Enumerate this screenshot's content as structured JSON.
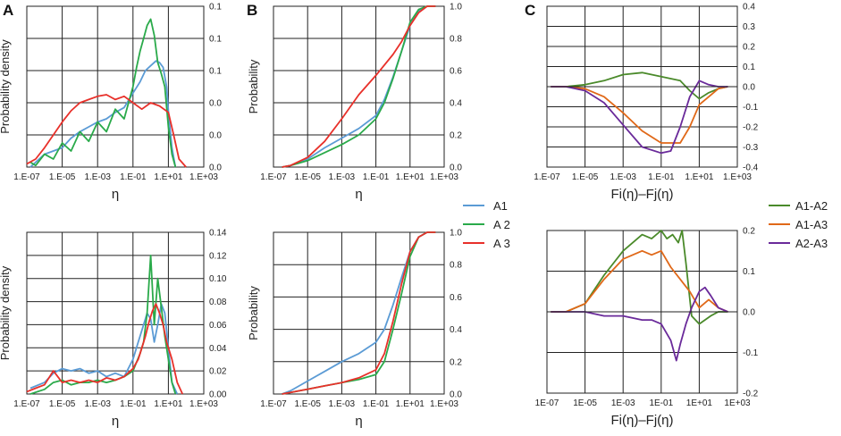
{
  "figure": {
    "panel_labels": [
      "A",
      "B",
      "C"
    ],
    "legend_left": [
      {
        "name": "A1",
        "color": "#5b9bd5"
      },
      {
        "name": "A 2",
        "color": "#2aaa4a"
      },
      {
        "name": "A 3",
        "color": "#e8302a"
      }
    ],
    "legend_right": [
      {
        "name": "A1-A2",
        "color": "#4a8a2a"
      },
      {
        "name": "A1-A3",
        "color": "#e06818"
      },
      {
        "name": "A2-A3",
        "color": "#6a2a9a"
      }
    ]
  },
  "chart_data": [
    {
      "id": "A-top",
      "type": "line",
      "panel": "A",
      "ylabel": "Probability density",
      "xlabel": "η",
      "x_ticks": [
        "1.E-07",
        "1.E-05",
        "1.E-03",
        "1.E-01",
        "1.E+01",
        "1.E+03"
      ],
      "y_ticks": [
        "0.0",
        "0.0",
        "0.0",
        "0.1",
        "0.1",
        "0.1"
      ],
      "xlim_log10": [
        -7,
        3
      ],
      "ylim": [
        0,
        0.1
      ],
      "series": [
        {
          "name": "A1",
          "color": "#5b9bd5",
          "x": [
            -6.8,
            -6,
            -5,
            -4.5,
            -4,
            -3.5,
            -3,
            -2.5,
            -2,
            -1.5,
            -1,
            -0.6,
            -0.3,
            0,
            0.3,
            0.5,
            0.7,
            0.9,
            1,
            1.2,
            1.4
          ],
          "y": [
            0,
            0.008,
            0.012,
            0.018,
            0.022,
            0.025,
            0.028,
            0.03,
            0.034,
            0.037,
            0.046,
            0.053,
            0.06,
            0.063,
            0.066,
            0.065,
            0.062,
            0.05,
            0.035,
            0.012,
            0
          ]
        },
        {
          "name": "A 2",
          "color": "#2aaa4a",
          "x": [
            -6.8,
            -6.5,
            -6,
            -5.5,
            -5,
            -4.5,
            -4,
            -3.5,
            -3,
            -2.5,
            -2,
            -1.5,
            -1,
            -0.8,
            -0.6,
            -0.4,
            -0.2,
            0,
            0.2,
            0.4,
            0.6,
            0.8,
            1,
            1.2,
            1.4
          ],
          "y": [
            0.003,
            0.001,
            0.008,
            0.005,
            0.015,
            0.01,
            0.022,
            0.016,
            0.028,
            0.022,
            0.036,
            0.03,
            0.05,
            0.062,
            0.072,
            0.08,
            0.088,
            0.092,
            0.082,
            0.065,
            0.058,
            0.05,
            0.025,
            0.008,
            0
          ]
        },
        {
          "name": "A 3",
          "color": "#e8302a",
          "x": [
            -7,
            -6.5,
            -6,
            -5.5,
            -5,
            -4.5,
            -4,
            -3.5,
            -3,
            -2.5,
            -2,
            -1.5,
            -1,
            -0.5,
            0,
            0.5,
            1,
            1.3,
            1.6,
            2
          ],
          "y": [
            0.002,
            0.005,
            0.012,
            0.02,
            0.028,
            0.035,
            0.04,
            0.042,
            0.044,
            0.045,
            0.042,
            0.044,
            0.04,
            0.036,
            0.04,
            0.038,
            0.034,
            0.02,
            0.005,
            0
          ]
        }
      ]
    },
    {
      "id": "A-bottom",
      "type": "line",
      "panel": "A",
      "ylabel": "Probability density",
      "xlabel": "η",
      "x_ticks": [
        "1.E-07",
        "1.E-05",
        "1.E-03",
        "1.E-01",
        "1.E+01",
        "1.E+03"
      ],
      "y_ticks": [
        "0.00",
        "0.02",
        "0.04",
        "0.06",
        "0.08",
        "0.10",
        "0.12",
        "0.14"
      ],
      "xlim_log10": [
        -7,
        3
      ],
      "ylim": [
        0,
        0.14
      ],
      "series": [
        {
          "name": "A1",
          "color": "#5b9bd5",
          "x": [
            -6.8,
            -6,
            -5.5,
            -5,
            -4.5,
            -4,
            -3.5,
            -3,
            -2.5,
            -2,
            -1.5,
            -1,
            -0.7,
            -0.4,
            -0.2,
            0,
            0.2,
            0.4,
            0.6,
            0.8,
            1,
            1.2,
            1.5
          ],
          "y": [
            0.005,
            0.01,
            0.018,
            0.022,
            0.02,
            0.022,
            0.018,
            0.02,
            0.015,
            0.018,
            0.015,
            0.03,
            0.045,
            0.06,
            0.07,
            0.065,
            0.045,
            0.06,
            0.078,
            0.07,
            0.04,
            0.01,
            0
          ]
        },
        {
          "name": "A 2",
          "color": "#2aaa4a",
          "x": [
            -6.8,
            -6,
            -5.5,
            -5,
            -4.5,
            -4,
            -3.5,
            -3,
            -2.5,
            -2,
            -1.5,
            -1,
            -0.6,
            -0.4,
            -0.2,
            0,
            0.1,
            0.2,
            0.4,
            0.6,
            0.8,
            1,
            1.2,
            1.4
          ],
          "y": [
            0,
            0.004,
            0.01,
            0.012,
            0.008,
            0.01,
            0.01,
            0.012,
            0.01,
            0.012,
            0.015,
            0.02,
            0.035,
            0.045,
            0.07,
            0.12,
            0.09,
            0.06,
            0.1,
            0.075,
            0.05,
            0.03,
            0.01,
            0
          ]
        },
        {
          "name": "A 3",
          "color": "#e8302a",
          "x": [
            -7,
            -6.5,
            -6,
            -5.5,
            -5,
            -4.5,
            -4,
            -3.5,
            -3,
            -2.5,
            -2,
            -1.5,
            -1,
            -0.7,
            -0.5,
            -0.3,
            -0.1,
            0.1,
            0.3,
            0.5,
            0.7,
            0.9,
            1.2,
            1.5,
            1.8
          ],
          "y": [
            0.002,
            0.005,
            0.008,
            0.02,
            0.01,
            0.012,
            0.01,
            0.012,
            0.01,
            0.014,
            0.012,
            0.015,
            0.022,
            0.03,
            0.04,
            0.05,
            0.062,
            0.072,
            0.078,
            0.07,
            0.06,
            0.045,
            0.03,
            0.01,
            0
          ]
        }
      ]
    },
    {
      "id": "B-top",
      "type": "line",
      "panel": "B",
      "ylabel": "Probability",
      "xlabel": "η",
      "x_ticks": [
        "1.E-07",
        "1.E-05",
        "1.E-03",
        "1.E-01",
        "1.E+01",
        "1.E+03"
      ],
      "y_ticks": [
        "0.0",
        "0.2",
        "0.4",
        "0.6",
        "0.8",
        "1.0"
      ],
      "xlim_log10": [
        -7,
        3
      ],
      "ylim": [
        0,
        1
      ],
      "series": [
        {
          "name": "A1",
          "color": "#5b9bd5",
          "x": [
            -6.5,
            -6,
            -5,
            -4,
            -3,
            -2,
            -1,
            -0.5,
            0,
            0.5,
            1,
            1.5,
            2,
            2.5
          ],
          "y": [
            0,
            0.01,
            0.05,
            0.12,
            0.18,
            0.24,
            0.32,
            0.42,
            0.56,
            0.72,
            0.88,
            0.97,
            1,
            1
          ]
        },
        {
          "name": "A 2",
          "color": "#2aaa4a",
          "x": [
            -6.5,
            -6,
            -5,
            -4,
            -3,
            -2,
            -1,
            -0.5,
            0,
            0.5,
            1,
            1.5,
            2,
            2.5
          ],
          "y": [
            0,
            0.01,
            0.04,
            0.09,
            0.14,
            0.2,
            0.3,
            0.4,
            0.55,
            0.72,
            0.9,
            0.98,
            1,
            1
          ]
        },
        {
          "name": "A 3",
          "color": "#e8302a",
          "x": [
            -6.5,
            -6,
            -5,
            -4,
            -3,
            -2,
            -1,
            0,
            0.5,
            1,
            1.5,
            2,
            2.5
          ],
          "y": [
            0,
            0.01,
            0.06,
            0.16,
            0.3,
            0.45,
            0.57,
            0.7,
            0.78,
            0.88,
            0.96,
            1,
            1
          ]
        }
      ]
    },
    {
      "id": "B-bottom",
      "type": "line",
      "panel": "B",
      "ylabel": "Probability",
      "xlabel": "η",
      "x_ticks": [
        "1.E-07",
        "1.E-05",
        "1.E-03",
        "1.E-01",
        "1.E+01",
        "1.E+03"
      ],
      "y_ticks": [
        "0.0",
        "0.2",
        "0.4",
        "0.6",
        "0.8",
        "1.0"
      ],
      "xlim_log10": [
        -7,
        3
      ],
      "ylim": [
        0,
        1
      ],
      "series": [
        {
          "name": "A1",
          "color": "#5b9bd5",
          "x": [
            -6.5,
            -6,
            -5,
            -4,
            -3,
            -2,
            -1,
            -0.5,
            0,
            0.5,
            1,
            1.5,
            2,
            2.5
          ],
          "y": [
            0,
            0.02,
            0.08,
            0.14,
            0.2,
            0.25,
            0.32,
            0.4,
            0.55,
            0.72,
            0.88,
            0.97,
            1,
            1
          ]
        },
        {
          "name": "A 2",
          "color": "#2aaa4a",
          "x": [
            -6.5,
            -6,
            -5,
            -4,
            -3,
            -2,
            -1,
            -0.5,
            0,
            0.5,
            1,
            1.5,
            2,
            2.5
          ],
          "y": [
            0,
            0.01,
            0.03,
            0.05,
            0.07,
            0.09,
            0.12,
            0.2,
            0.4,
            0.62,
            0.85,
            0.97,
            1,
            1
          ]
        },
        {
          "name": "A 3",
          "color": "#e8302a",
          "x": [
            -6.5,
            -6,
            -5,
            -4,
            -3,
            -2,
            -1,
            -0.5,
            0,
            0.5,
            1,
            1.5,
            2,
            2.5
          ],
          "y": [
            0,
            0.01,
            0.03,
            0.05,
            0.07,
            0.1,
            0.15,
            0.25,
            0.45,
            0.68,
            0.88,
            0.97,
            1,
            1
          ]
        }
      ]
    },
    {
      "id": "C-top",
      "type": "line",
      "panel": "C",
      "xlabel": "Fi(η)–Fj(η)",
      "x_ticks": [
        "1.E-07",
        "1.E-05",
        "1.E-03",
        "1.E-01",
        "1.E+01",
        "1.E+03"
      ],
      "y_ticks": [
        "-0.4",
        "-0.3",
        "-0.2",
        "-0.1",
        "0.0",
        "0.1",
        "0.2",
        "0.3",
        "0.4"
      ],
      "xlim_log10": [
        -7,
        3
      ],
      "ylim": [
        -0.4,
        0.4
      ],
      "series": [
        {
          "name": "A1-A2",
          "color": "#4a8a2a",
          "x": [
            -6.8,
            -6,
            -5,
            -4,
            -3,
            -2,
            -1,
            0,
            0.5,
            1,
            1.5,
            2,
            2.5
          ],
          "y": [
            0,
            0,
            0.01,
            0.03,
            0.06,
            0.07,
            0.05,
            0.03,
            -0.02,
            -0.06,
            -0.03,
            -0.01,
            0
          ]
        },
        {
          "name": "A1-A3",
          "color": "#e06818",
          "x": [
            -6.8,
            -6,
            -5,
            -4,
            -3,
            -2,
            -1,
            0,
            0.5,
            1,
            1.5,
            2,
            2.5
          ],
          "y": [
            0,
            0,
            -0.01,
            -0.05,
            -0.13,
            -0.22,
            -0.28,
            -0.28,
            -0.2,
            -0.09,
            -0.05,
            -0.01,
            0
          ]
        },
        {
          "name": "A2-A3",
          "color": "#6a2a9a",
          "x": [
            -6.8,
            -6,
            -5,
            -4,
            -3,
            -2,
            -1,
            -0.5,
            0,
            0.5,
            1,
            1.5,
            2,
            2.5
          ],
          "y": [
            0,
            0,
            -0.02,
            -0.08,
            -0.19,
            -0.3,
            -0.33,
            -0.32,
            -0.2,
            -0.05,
            0.03,
            0.01,
            0,
            0
          ]
        }
      ]
    },
    {
      "id": "C-bottom",
      "type": "line",
      "panel": "C",
      "xlabel": "Fi(η)–Fj(η)",
      "x_ticks": [
        "1E-07",
        "1E-05",
        "1E-03",
        "1E-01",
        "1E+01",
        "1E+03"
      ],
      "y_ticks": [
        "-0.2",
        "-0.1",
        "0.0",
        "0.1",
        "0.2"
      ],
      "xlim_log10": [
        -7,
        3
      ],
      "ylim": [
        -0.2,
        0.2
      ],
      "series": [
        {
          "name": "A1-A2",
          "color": "#4a8a2a",
          "x": [
            -6.8,
            -6,
            -5,
            -4,
            -3,
            -2,
            -1.5,
            -1,
            -0.7,
            -0.4,
            -0.1,
            0.1,
            0.3,
            0.6,
            1,
            1.3,
            1.6,
            2,
            2.5
          ],
          "y": [
            0,
            0,
            0.02,
            0.09,
            0.15,
            0.19,
            0.18,
            0.2,
            0.18,
            0.19,
            0.17,
            0.2,
            0.12,
            -0.01,
            -0.03,
            -0.02,
            -0.01,
            0,
            0
          ]
        },
        {
          "name": "A1-A3",
          "color": "#e06818",
          "x": [
            -6.8,
            -6,
            -5,
            -4,
            -3,
            -2,
            -1.5,
            -1,
            -0.5,
            0,
            0.5,
            1,
            1.5,
            2,
            2.5
          ],
          "y": [
            0,
            0,
            0.02,
            0.08,
            0.13,
            0.15,
            0.14,
            0.15,
            0.11,
            0.08,
            0.05,
            0.01,
            0.03,
            0.01,
            0
          ]
        },
        {
          "name": "A2-A3",
          "color": "#6a2a9a",
          "x": [
            -6.8,
            -6,
            -5,
            -4,
            -3,
            -2,
            -1.5,
            -1,
            -0.5,
            -0.2,
            0,
            0.3,
            0.6,
            1,
            1.3,
            1.6,
            2,
            2.5
          ],
          "y": [
            0,
            0,
            0,
            -0.01,
            -0.01,
            -0.02,
            -0.02,
            -0.03,
            -0.07,
            -0.12,
            -0.08,
            -0.03,
            0.01,
            0.05,
            0.06,
            0.04,
            0.01,
            0
          ]
        }
      ]
    }
  ]
}
